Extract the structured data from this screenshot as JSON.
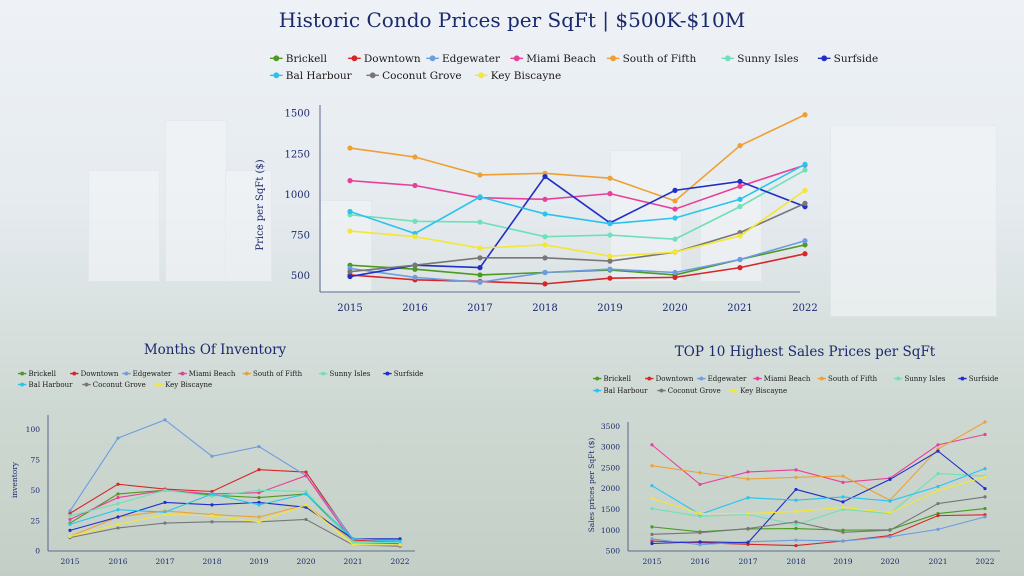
{
  "chart_data": [
    {
      "type": "line",
      "title": "Historic Condo Prices per SqFt | $500K-$10M",
      "xlabel": "",
      "ylabel": "Price per SqFt ($)",
      "categories": [
        "2015",
        "2016",
        "2017",
        "2018",
        "2019",
        "2020",
        "2021",
        "2022"
      ],
      "ylim": [
        400,
        1550
      ],
      "yticks": [
        "500",
        "750",
        "1000",
        "1250",
        "1500"
      ],
      "ytick_values": [
        500,
        750,
        1000,
        1250,
        1500
      ],
      "series": [
        {
          "name": "Brickell",
          "color": "#4c9a1f",
          "values": [
            565,
            540,
            505,
            520,
            535,
            505,
            600,
            690
          ]
        },
        {
          "name": "Downtown",
          "color": "#d62728",
          "values": [
            505,
            475,
            465,
            450,
            485,
            490,
            550,
            635
          ]
        },
        {
          "name": "Edgewater",
          "color": "#6f9be0",
          "values": [
            545,
            490,
            460,
            520,
            540,
            520,
            600,
            715
          ]
        },
        {
          "name": "Miami Beach",
          "color": "#e8409a",
          "values": [
            1085,
            1055,
            980,
            970,
            1005,
            910,
            1050,
            1180
          ]
        },
        {
          "name": "South of Fifth",
          "color": "#f0a032",
          "values": [
            1285,
            1230,
            1120,
            1130,
            1100,
            960,
            1300,
            1490
          ]
        },
        {
          "name": "Sunny Isles",
          "color": "#6fe0b8",
          "values": [
            875,
            835,
            830,
            740,
            750,
            725,
            925,
            1150
          ]
        },
        {
          "name": "Surfside",
          "color": "#1f2fc8",
          "values": [
            495,
            565,
            550,
            1110,
            825,
            1025,
            1080,
            925
          ]
        },
        {
          "name": "Bal Harbour",
          "color": "#29c4ee",
          "values": [
            895,
            760,
            985,
            880,
            820,
            855,
            970,
            1185
          ]
        },
        {
          "name": "Coconut Grove",
          "color": "#777777",
          "values": [
            525,
            565,
            610,
            610,
            590,
            645,
            765,
            945
          ]
        },
        {
          "name": "Key Biscayne",
          "color": "#f4e635",
          "values": [
            775,
            740,
            670,
            690,
            620,
            645,
            745,
            1025
          ]
        }
      ]
    },
    {
      "type": "line",
      "title": "Months Of Inventory",
      "xlabel": "",
      "ylabel": "inventory",
      "categories": [
        "2015",
        "2016",
        "2017",
        "2018",
        "2019",
        "2020",
        "2021",
        "2022"
      ],
      "ylim": [
        0,
        112
      ],
      "yticks": [
        "0",
        "25",
        "50",
        "75",
        "100"
      ],
      "ytick_values": [
        0,
        25,
        50,
        75,
        100
      ],
      "series": [
        {
          "name": "Brickell",
          "color": "#4c9a1f",
          "values": [
            23,
            47,
            50,
            46,
            44,
            47,
            8,
            6
          ]
        },
        {
          "name": "Downtown",
          "color": "#d62728",
          "values": [
            31,
            55,
            51,
            49,
            67,
            65,
            9,
            7
          ]
        },
        {
          "name": "Edgewater",
          "color": "#6f9be0",
          "values": [
            33,
            93,
            108,
            78,
            86,
            62,
            10,
            9
          ]
        },
        {
          "name": "Miami Beach",
          "color": "#e8409a",
          "values": [
            26,
            44,
            50,
            47,
            48,
            62,
            7,
            6
          ]
        },
        {
          "name": "South of Fifth",
          "color": "#f0a032",
          "values": [
            12,
            28,
            33,
            30,
            28,
            38,
            8,
            7
          ]
        },
        {
          "name": "Sunny Isles",
          "color": "#6fe0b8",
          "values": [
            29,
            39,
            50,
            45,
            50,
            49,
            7,
            7
          ]
        },
        {
          "name": "Surfside",
          "color": "#1f2fc8",
          "values": [
            17,
            28,
            40,
            38,
            40,
            36,
            10,
            10
          ]
        },
        {
          "name": "Bal Harbour",
          "color": "#29c4ee",
          "values": [
            22,
            34,
            32,
            47,
            38,
            47,
            10,
            8
          ]
        },
        {
          "name": "Coconut Grove",
          "color": "#777777",
          "values": [
            11,
            19,
            23,
            24,
            24,
            26,
            5,
            4
          ]
        },
        {
          "name": "Key Biscayne",
          "color": "#f4e635",
          "values": [
            12,
            22,
            30,
            29,
            24,
            38,
            5,
            5
          ]
        }
      ]
    },
    {
      "type": "line",
      "title": "TOP 10 Highest Sales Prices per SqFt",
      "xlabel": "",
      "ylabel": "Sales prices per SqFt ($)",
      "categories": [
        "2015",
        "2016",
        "2017",
        "2018",
        "2019",
        "2020",
        "2021",
        "2022"
      ],
      "ylim": [
        500,
        3600
      ],
      "yticks": [
        "500",
        "1000",
        "1500",
        "2000",
        "2500",
        "3000",
        "3500"
      ],
      "ytick_values": [
        500,
        1000,
        1500,
        2000,
        2500,
        3000,
        3500
      ],
      "series": [
        {
          "name": "Brickell",
          "color": "#4c9a1f",
          "values": [
            1080,
            960,
            1030,
            1040,
            1000,
            1010,
            1400,
            1520
          ]
        },
        {
          "name": "Downtown",
          "color": "#d62728",
          "values": [
            740,
            700,
            660,
            630,
            740,
            870,
            1350,
            1370
          ]
        },
        {
          "name": "Edgewater",
          "color": "#6f9be0",
          "values": [
            790,
            650,
            720,
            760,
            740,
            840,
            1020,
            1320
          ]
        },
        {
          "name": "Miami Beach",
          "color": "#e8409a",
          "values": [
            3050,
            2100,
            2400,
            2450,
            2150,
            2250,
            3050,
            3300
          ]
        },
        {
          "name": "South of Fifth",
          "color": "#f0a032",
          "values": [
            2550,
            2380,
            2230,
            2270,
            2300,
            1720,
            2950,
            3600
          ]
        },
        {
          "name": "Sunny Isles",
          "color": "#6fe0b8",
          "values": [
            1520,
            1330,
            1380,
            1130,
            1500,
            1400,
            2360,
            2300
          ]
        },
        {
          "name": "Surfside",
          "color": "#1f2fc8",
          "values": [
            680,
            720,
            700,
            1980,
            1680,
            2220,
            2900,
            2000
          ]
        },
        {
          "name": "Bal Harbour",
          "color": "#29c4ee",
          "values": [
            2070,
            1380,
            1780,
            1720,
            1800,
            1700,
            2050,
            2480
          ]
        },
        {
          "name": "Coconut Grove",
          "color": "#777777",
          "values": [
            900,
            940,
            1040,
            1200,
            950,
            1000,
            1640,
            1800
          ]
        },
        {
          "name": "Key Biscayne",
          "color": "#f4e635",
          "values": [
            1760,
            1400,
            1400,
            1450,
            1550,
            1420,
            1950,
            2280
          ]
        }
      ]
    }
  ]
}
